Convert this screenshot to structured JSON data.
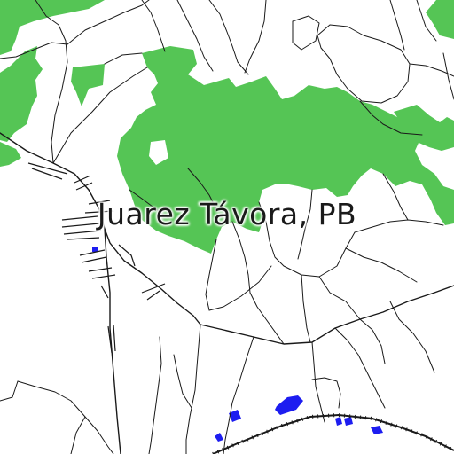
{
  "map": {
    "place_label": "Juarez Távora, PB",
    "colors": {
      "background": "#ffffff",
      "vegetation": "#55c555",
      "water": "#1d1df0",
      "roads": "#1a1a1a",
      "label": "#1a1a1a"
    }
  }
}
